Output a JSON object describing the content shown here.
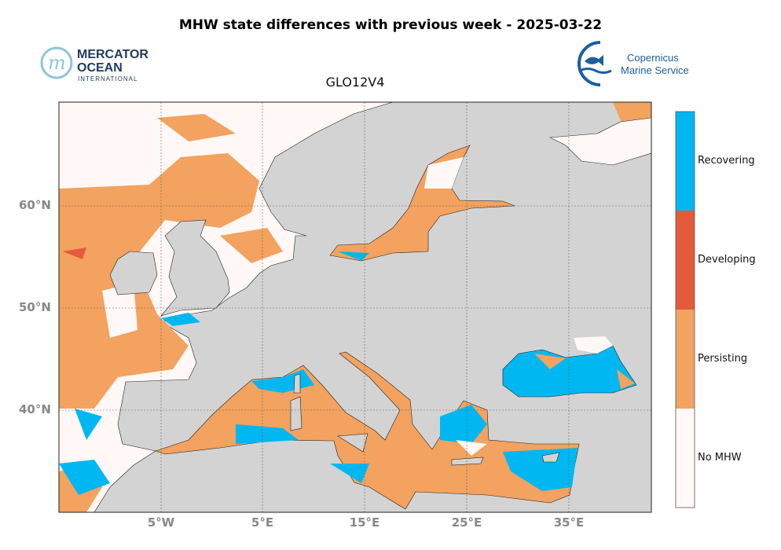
{
  "title": "MHW state differences with previous week - 2025-03-22",
  "subtitle": "GLO12V4",
  "logos": {
    "mercator": {
      "line1": "MERCATOR",
      "line2": "OCEAN",
      "line3": "INTERNATIONAL"
    },
    "copernicus": {
      "line1": "Copernicus",
      "line2": "Marine Service"
    }
  },
  "map": {
    "region": {
      "lon_range": [
        -15,
        43
      ],
      "lat_range": [
        30,
        70
      ]
    },
    "lat_ticks": [
      "60°N",
      "50°N",
      "40°N"
    ],
    "lon_ticks": [
      "5°W",
      "5°E",
      "15°E",
      "25°E",
      "35°E"
    ],
    "grid": true,
    "land_color": "#d3d3d3"
  },
  "legend": {
    "placement": "right colorbar",
    "categories": [
      {
        "label": "Recovering",
        "color": "#00b7f1"
      },
      {
        "label": "Developing",
        "color": "#e45a3c"
      },
      {
        "label": "Persisting",
        "color": "#f3a25f"
      },
      {
        "label": "No MHW",
        "color": "#fff8f6"
      }
    ]
  }
}
